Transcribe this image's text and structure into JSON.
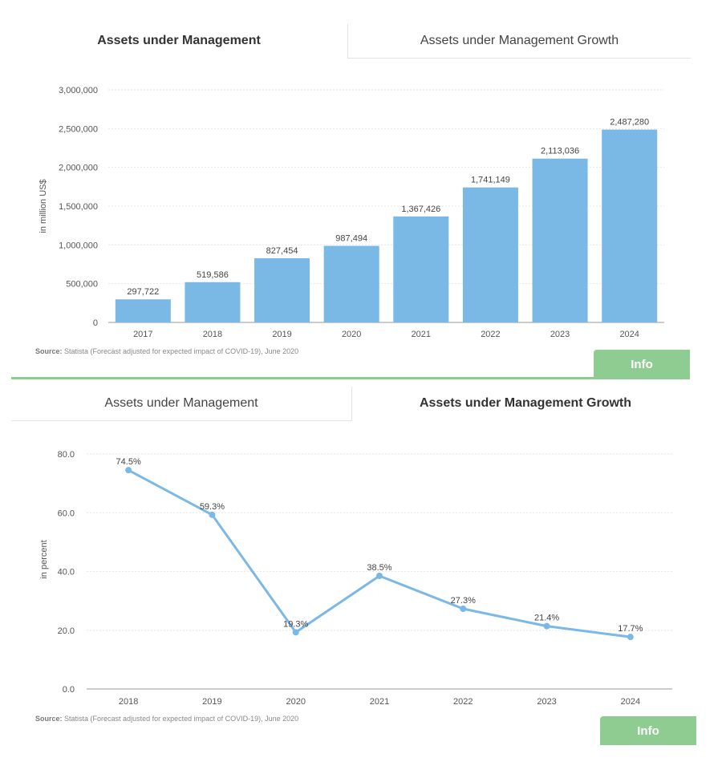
{
  "panel1": {
    "tabs": [
      "Assets under Management",
      "Assets under Management Growth"
    ],
    "source_label": "Source:",
    "source_text": "Statista (Forecast adjusted for expected impact of COVID-19), June 2020",
    "info_label": "Info"
  },
  "panel2": {
    "tabs": [
      "Assets under Management",
      "Assets under Management Growth"
    ],
    "source_label": "Source:",
    "source_text": "Statista (Forecast adjusted for expected impact of COVID-19), June 2020",
    "info_label": "Info"
  },
  "colors": {
    "bar": "#7ab8e6",
    "line": "#7ab8e6",
    "info": "#8fcc92",
    "grid": "#e6e6e6"
  },
  "chart_data": [
    {
      "type": "bar",
      "title": "Assets under Management",
      "ylabel": "in million US$",
      "categories": [
        "2017",
        "2018",
        "2019",
        "2020",
        "2021",
        "2022",
        "2023",
        "2024"
      ],
      "values": [
        297722,
        519586,
        827454,
        987494,
        1367426,
        1741149,
        2113036,
        2487280
      ],
      "value_labels": [
        "297,722",
        "519,586",
        "827,454",
        "987,494",
        "1,367,426",
        "1,741,149",
        "2,113,036",
        "2,487,280"
      ],
      "ylim": [
        0,
        3000000
      ],
      "yticks": [
        0,
        500000,
        1000000,
        1500000,
        2000000,
        2500000,
        3000000
      ],
      "ytick_labels": [
        "0",
        "500,000",
        "1,000,000",
        "1,500,000",
        "2,000,000",
        "2,500,000",
        "3,000,000"
      ],
      "grid": true
    },
    {
      "type": "line",
      "title": "Assets under Management Growth",
      "ylabel": "in percent",
      "categories": [
        "2018",
        "2019",
        "2020",
        "2021",
        "2022",
        "2023",
        "2024"
      ],
      "values": [
        74.5,
        59.3,
        19.3,
        38.5,
        27.3,
        21.4,
        17.7
      ],
      "value_labels": [
        "74.5%",
        "59.3%",
        "19.3%",
        "38.5%",
        "27.3%",
        "21.4%",
        "17.7%"
      ],
      "ylim": [
        0,
        80
      ],
      "yticks": [
        0,
        20,
        40,
        60,
        80
      ],
      "ytick_labels": [
        "0.0",
        "20.0",
        "40.0",
        "60.0",
        "80.0"
      ],
      "grid": true
    }
  ]
}
